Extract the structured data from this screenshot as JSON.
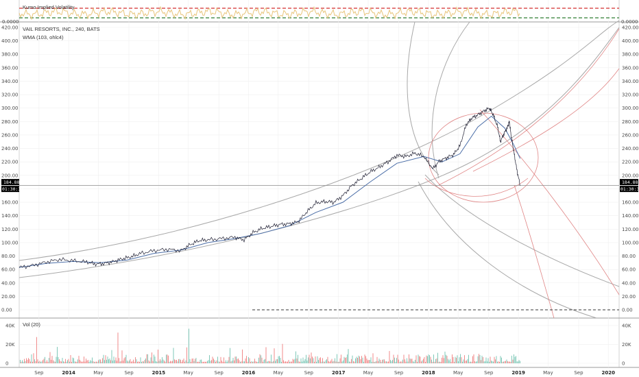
{
  "colors": {
    "price_line": "#1a1a2e",
    "wma_line": "#4a6da7",
    "channel": "#9a9a9a",
    "fib_red": "#e08585",
    "threshold_red": "#d32f2f",
    "threshold_green": "#2e7d32",
    "osc": "#e8c47a",
    "vol_up": "#7fc8b8",
    "vol_down": "#f08a8a",
    "tag_bg": "#000000",
    "zero_dashed": "#333333"
  },
  "chart_data": [
    {
      "type": "line",
      "name": "oscillator-pane",
      "title": "Kumo Implied Volatility",
      "thresholds": [
        {
          "color": "red"
        },
        {
          "color": "green"
        }
      ],
      "right_tick": "0.0000",
      "left_tick": "0.0000"
    },
    {
      "type": "line",
      "name": "price-pane",
      "title": "VAIL RESORTS, INC., 240, BATS",
      "indicator": "WMA (103, ohlc4)",
      "y_ticks": [
        "0.00",
        "20.00",
        "40.00",
        "60.00",
        "80.00",
        "100.00",
        "120.00",
        "140.00",
        "160.00",
        "180.00",
        "200.00",
        "220.00",
        "240.00",
        "260.00",
        "280.00",
        "300.00",
        "320.00",
        "340.00",
        "360.00",
        "380.00",
        "400.00",
        "420.00"
      ],
      "ylim": [
        0,
        425
      ],
      "last_price": "184.88",
      "countdown": "01:30:33",
      "x_labels": [
        {
          "t": 2013.67,
          "label": "Sep"
        },
        {
          "t": 2014.0,
          "label": "2014",
          "bold": true
        },
        {
          "t": 2014.33,
          "label": "May"
        },
        {
          "t": 2014.67,
          "label": "Sep"
        },
        {
          "t": 2015.0,
          "label": "2015",
          "bold": true
        },
        {
          "t": 2015.33,
          "label": "May"
        },
        {
          "t": 2015.67,
          "label": "Sep"
        },
        {
          "t": 2016.0,
          "label": "2016",
          "bold": true
        },
        {
          "t": 2016.33,
          "label": "May"
        },
        {
          "t": 2016.67,
          "label": "Sep"
        },
        {
          "t": 2017.0,
          "label": "2017",
          "bold": true
        },
        {
          "t": 2017.33,
          "label": "May"
        },
        {
          "t": 2017.67,
          "label": "Sep"
        },
        {
          "t": 2018.0,
          "label": "2018",
          "bold": true
        },
        {
          "t": 2018.33,
          "label": "May"
        },
        {
          "t": 2018.67,
          "label": "Sep"
        },
        {
          "t": 2019.0,
          "label": "2019",
          "bold": true
        },
        {
          "t": 2019.33,
          "label": "May"
        },
        {
          "t": 2019.67,
          "label": "Sep"
        },
        {
          "t": 2020.0,
          "label": "2020",
          "bold": true
        }
      ],
      "xlim": [
        2013.45,
        2020.12
      ],
      "series": [
        {
          "name": "Price",
          "points": [
            [
              2013.45,
              63
            ],
            [
              2013.6,
              66
            ],
            [
              2013.75,
              71
            ],
            [
              2013.9,
              75
            ],
            [
              2014.05,
              73
            ],
            [
              2014.2,
              71
            ],
            [
              2014.3,
              68
            ],
            [
              2014.4,
              69
            ],
            [
              2014.5,
              72
            ],
            [
              2014.6,
              76
            ],
            [
              2014.7,
              79
            ],
            [
              2014.8,
              84
            ],
            [
              2014.95,
              88
            ],
            [
              2015.1,
              90
            ],
            [
              2015.25,
              88
            ],
            [
              2015.35,
              97
            ],
            [
              2015.45,
              103
            ],
            [
              2015.55,
              104
            ],
            [
              2015.7,
              106
            ],
            [
              2015.85,
              108
            ],
            [
              2015.95,
              104
            ],
            [
              2016.05,
              115
            ],
            [
              2016.15,
              121
            ],
            [
              2016.25,
              124
            ],
            [
              2016.35,
              127
            ],
            [
              2016.45,
              128
            ],
            [
              2016.55,
              131
            ],
            [
              2016.65,
              146
            ],
            [
              2016.75,
              159
            ],
            [
              2016.85,
              161
            ],
            [
              2016.95,
              160
            ],
            [
              2017.05,
              170
            ],
            [
              2017.15,
              185
            ],
            [
              2017.25,
              195
            ],
            [
              2017.35,
              205
            ],
            [
              2017.45,
              212
            ],
            [
              2017.55,
              220
            ],
            [
              2017.65,
              230
            ],
            [
              2017.75,
              228
            ],
            [
              2017.85,
              233
            ],
            [
              2017.95,
              228
            ],
            [
              2018.05,
              210
            ],
            [
              2018.12,
              221
            ],
            [
              2018.2,
              226
            ],
            [
              2018.28,
              231
            ],
            [
              2018.35,
              244
            ],
            [
              2018.42,
              275
            ],
            [
              2018.48,
              285
            ],
            [
              2018.55,
              290
            ],
            [
              2018.62,
              296
            ],
            [
              2018.68,
              300
            ],
            [
              2018.72,
              290
            ],
            [
              2018.77,
              272
            ],
            [
              2018.8,
              250
            ],
            [
              2018.84,
              262
            ],
            [
              2018.88,
              272
            ],
            [
              2018.9,
              280
            ],
            [
              2018.92,
              258
            ],
            [
              2018.95,
              235
            ],
            [
              2018.98,
              210
            ],
            [
              2019.02,
              185
            ]
          ]
        },
        {
          "name": "WMA",
          "points": [
            [
              2013.45,
              63
            ],
            [
              2013.75,
              69
            ],
            [
              2014.05,
              72
            ],
            [
              2014.35,
              70
            ],
            [
              2014.65,
              74
            ],
            [
              2014.95,
              84
            ],
            [
              2015.25,
              89
            ],
            [
              2015.55,
              100
            ],
            [
              2015.85,
              106
            ],
            [
              2016.15,
              114
            ],
            [
              2016.45,
              125
            ],
            [
              2016.75,
              145
            ],
            [
              2017.05,
              160
            ],
            [
              2017.35,
              190
            ],
            [
              2017.65,
              218
            ],
            [
              2017.95,
              228
            ],
            [
              2018.15,
              220
            ],
            [
              2018.35,
              232
            ],
            [
              2018.55,
              272
            ],
            [
              2018.7,
              288
            ],
            [
              2018.85,
              270
            ],
            [
              2018.95,
              245
            ],
            [
              2019.02,
              225
            ]
          ]
        }
      ]
    },
    {
      "type": "bar",
      "name": "volume-pane",
      "title": "Vol (20)",
      "y_ticks": [
        "0",
        "20K",
        "40K"
      ],
      "ylim": [
        0,
        45000
      ]
    }
  ]
}
